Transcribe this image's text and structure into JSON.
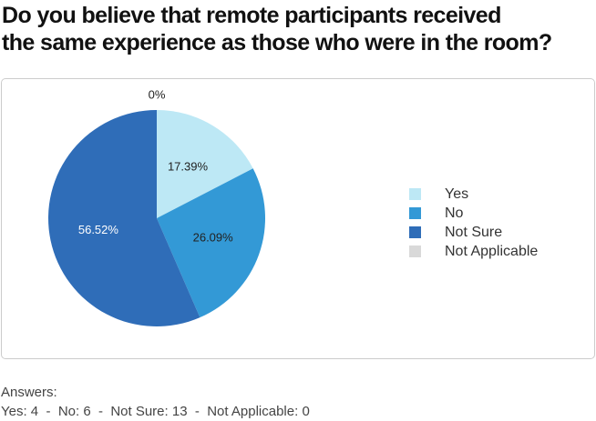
{
  "chart_data": {
    "type": "pie",
    "title": [
      "Do you believe that remote participants received",
      "the same experience as those who were in the room?"
    ],
    "categories": [
      "Yes",
      "No",
      "Not Sure",
      "Not Applicable"
    ],
    "values": [
      17.39,
      26.09,
      56.52,
      0
    ],
    "value_labels": [
      "17.39%",
      "26.09%",
      "56.52%",
      "0%"
    ],
    "colors": [
      "#bde8f5",
      "#3399d6",
      "#2f6db8",
      "#d9d9d9"
    ],
    "legend": "right"
  },
  "answers": {
    "label": "Answers:",
    "text": "Yes: 4  -  No: 6  -  Not Sure: 13  -  Not Applicable: 0"
  }
}
